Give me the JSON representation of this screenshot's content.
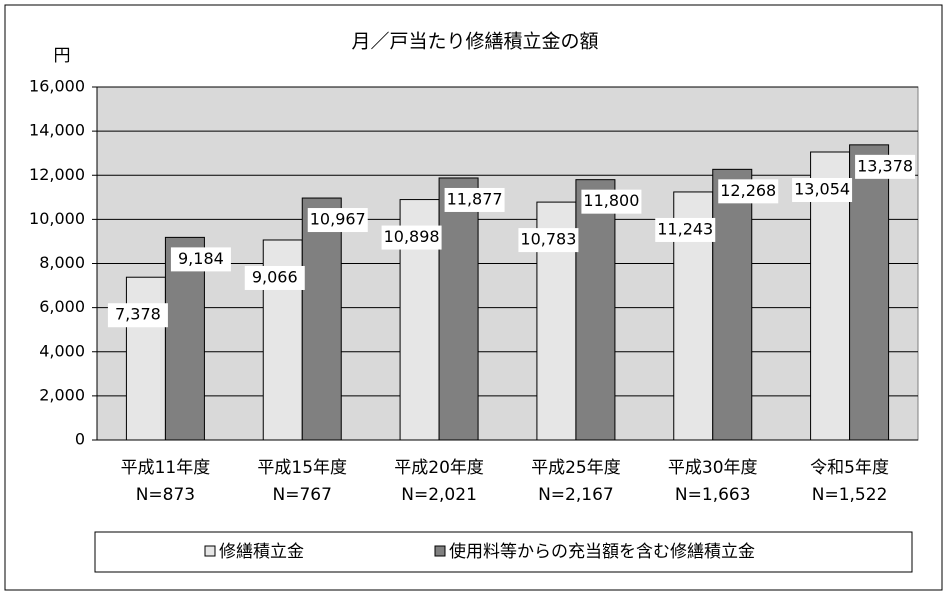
{
  "chart_data": {
    "type": "bar",
    "title": "月／戸当たり修繕積立金の額",
    "y_label": "円",
    "categories": [
      "平成11年度",
      "平成15年度",
      "平成20年度",
      "平成25年度",
      "平成30年度",
      "令和5年度"
    ],
    "sample_sizes": [
      "N=873",
      "N=767",
      "N=2,021",
      "N=2,167",
      "N=1,663",
      "N=1,522"
    ],
    "series": [
      {
        "name": "修繕積立金",
        "color": "#e6e6e6",
        "values": [
          7378,
          9066,
          10898,
          10783,
          11243,
          13054
        ],
        "value_labels": [
          "7,378",
          "9,066",
          "10,898",
          "10,783",
          "11,243",
          "13,054"
        ]
      },
      {
        "name": "使用料等からの充当額を含む修繕積立金",
        "color": "#808080",
        "values": [
          9184,
          10967,
          11877,
          11800,
          12268,
          13378
        ],
        "value_labels": [
          "9,184",
          "10,967",
          "11,877",
          "11,800",
          "12,268",
          "13,378"
        ]
      }
    ],
    "ylim": [
      0,
      16000
    ],
    "yticks": [
      0,
      {
        "value": 2000,
        "label": "2,000"
      },
      {
        "value": 4000,
        "label": "4,000"
      },
      {
        "value": 6000,
        "label": "6,000"
      },
      {
        "value": 8000,
        "label": "8,000"
      },
      {
        "value": 10000,
        "label": "10,000"
      },
      {
        "value": 12000,
        "label": "12,000"
      },
      {
        "value": 14000,
        "label": "14,000"
      },
      {
        "value": 16000,
        "label": "16,000"
      }
    ],
    "grid": true,
    "legend": "bottom"
  }
}
